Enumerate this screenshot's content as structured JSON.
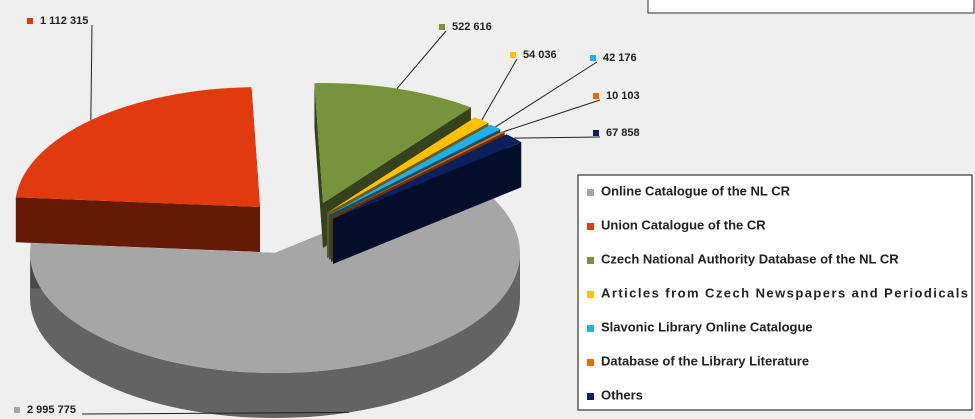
{
  "chart_data": {
    "type": "pie",
    "categories": [
      "Online Catalogue of the NL CR",
      "Union Catalogue of the CR",
      "Czech National Authority Database of the NL CR",
      "Articles from Czech Newspapers and Periodicals",
      "Slavonic Library Online Catalogue",
      "Database of the Library Literature",
      "Others"
    ],
    "values": [
      2995775,
      1112315,
      522616,
      54036,
      42176,
      10103,
      67858
    ],
    "value_labels": [
      "2 995 775",
      "1 112 315",
      "522 616",
      "54 036",
      "42 176",
      "10 103",
      "67 858"
    ],
    "colors": [
      "#a6a6a6",
      "#e03a0e",
      "#77933c",
      "#ffc000",
      "#1fb0e8",
      "#e36c09",
      "#0b1f5e"
    ]
  }
}
